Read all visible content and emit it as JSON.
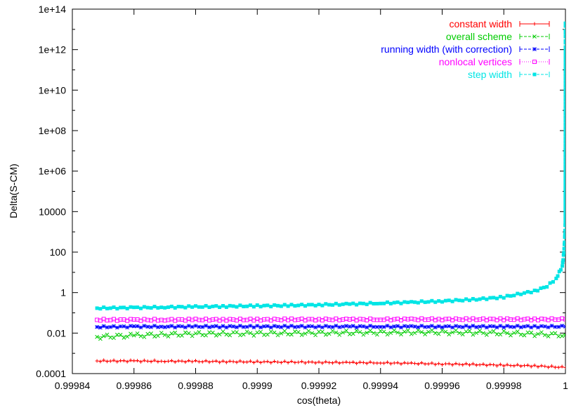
{
  "chart_data": {
    "type": "scatter",
    "title": "",
    "xlabel": "cos(theta)",
    "ylabel": "Delta(S-CM)",
    "x_scale": "linear",
    "y_scale": "log",
    "xlim": [
      0.99984,
      1.0
    ],
    "ylim": [
      0.0001,
      100000000000000.0
    ],
    "x_ticks": [
      0.99984,
      0.99986,
      0.99988,
      0.9999,
      0.99992,
      0.99994,
      0.99996,
      0.99998,
      1.0
    ],
    "x_tick_labels": [
      "0.99984",
      "0.99986",
      "0.99988",
      "0.9999",
      "0.99992",
      "0.99994",
      "0.99996",
      "0.99998",
      "1"
    ],
    "y_ticks": [
      0.0001,
      0.01,
      1,
      100,
      10000,
      1000000,
      100000000,
      10000000000,
      1000000000000,
      100000000000000
    ],
    "y_tick_labels": [
      "0.0001",
      "0.01",
      "1",
      "100",
      "10000",
      "1e+06",
      "1e+08",
      "1e+10",
      "1e+12",
      "1e+14"
    ],
    "legend_position": "top-right",
    "grid": false,
    "series": [
      {
        "name": "constant width",
        "color": "#ff0000",
        "marker": "plus",
        "x": [
          0.999848,
          0.99986,
          0.99987,
          0.99988,
          0.99989,
          0.9999,
          0.99991,
          0.99992,
          0.99993,
          0.99994,
          0.99995,
          0.99996,
          0.99997,
          0.99998,
          0.99999,
          1.0
        ],
        "y": [
          0.00042,
          0.00042,
          0.00041,
          0.0004,
          0.00039,
          0.00038,
          0.00037,
          0.00036,
          0.00035,
          0.00034,
          0.00032,
          0.0003,
          0.00028,
          0.00026,
          0.00024,
          0.0002
        ]
      },
      {
        "name": "overall scheme",
        "color": "#00cc00",
        "marker": "cross",
        "x": [
          0.999848,
          0.99986,
          0.99987,
          0.99988,
          0.99989,
          0.9999,
          0.99991,
          0.99992,
          0.99993,
          0.99994,
          0.99995,
          0.99996,
          0.99997,
          0.99998,
          0.99999,
          1.0
        ],
        "y": [
          0.0065,
          0.0075,
          0.0085,
          0.009,
          0.0095,
          0.0095,
          0.01,
          0.01,
          0.0105,
          0.0105,
          0.011,
          0.011,
          0.0105,
          0.01,
          0.009,
          0.008
        ]
      },
      {
        "name": "running width (with correction)",
        "color": "#0000ff",
        "marker": "star",
        "x": [
          0.999848,
          0.99986,
          0.99987,
          0.99988,
          0.99989,
          0.9999,
          0.99991,
          0.99992,
          0.99993,
          0.99994,
          0.99995,
          0.99996,
          0.99997,
          0.99998,
          0.99999,
          1.0
        ],
        "y": [
          0.02,
          0.021,
          0.021,
          0.021,
          0.021,
          0.021,
          0.021,
          0.021,
          0.021,
          0.021,
          0.021,
          0.021,
          0.021,
          0.021,
          0.021,
          0.021
        ]
      },
      {
        "name": "nonlocal vertices",
        "color": "#ff00ff",
        "marker": "open-square",
        "x": [
          0.999848,
          0.99986,
          0.99987,
          0.99988,
          0.99989,
          0.9999,
          0.99991,
          0.99992,
          0.99993,
          0.99994,
          0.99995,
          0.99996,
          0.99997,
          0.99998,
          0.99999,
          1.0
        ],
        "y": [
          0.045,
          0.045,
          0.045,
          0.046,
          0.046,
          0.046,
          0.047,
          0.047,
          0.047,
          0.047,
          0.048,
          0.048,
          0.048,
          0.048,
          0.048,
          0.048
        ]
      },
      {
        "name": "step width",
        "color": "#00e5e5",
        "marker": "filled-square",
        "x": [
          0.999848,
          0.99986,
          0.99987,
          0.99988,
          0.99989,
          0.9999,
          0.99991,
          0.99992,
          0.99993,
          0.99994,
          0.99995,
          0.99996,
          0.99997,
          0.99998,
          0.99999,
          0.999994,
          0.999997,
          0.999999,
          0.9999995,
          0.9999998,
          0.99999995,
          1.0,
          1.0
        ],
        "y": [
          0.17,
          0.18,
          0.19,
          0.2,
          0.21,
          0.22,
          0.23,
          0.25,
          0.27,
          0.3,
          0.33,
          0.38,
          0.45,
          0.6,
          1.2,
          2.0,
          5.0,
          20.0,
          100.0,
          500.0,
          3000.0,
          2000000000000.0,
          20000000000000.0
        ]
      }
    ]
  }
}
